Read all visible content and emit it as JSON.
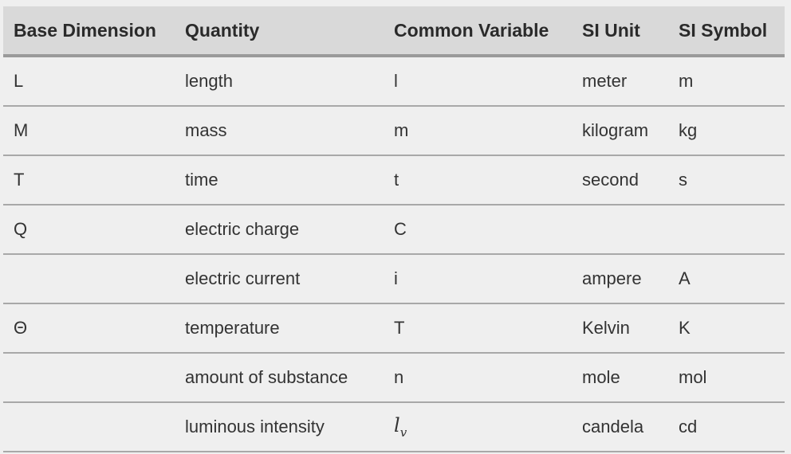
{
  "table": {
    "headers": [
      "Base Dimension",
      "Quantity",
      "Common Variable",
      "SI Unit",
      "SI Symbol"
    ],
    "rows": [
      {
        "dimension": "L",
        "quantity": "length",
        "variable": "l",
        "unit": "meter",
        "symbol": "m"
      },
      {
        "dimension": "M",
        "quantity": "mass",
        "variable": "m",
        "unit": "kilogram",
        "symbol": "kg"
      },
      {
        "dimension": "T",
        "quantity": "time",
        "variable": "t",
        "unit": "second",
        "symbol": "s"
      },
      {
        "dimension": "Q",
        "quantity": "electric charge",
        "variable": "C",
        "unit": "",
        "symbol": ""
      },
      {
        "dimension": "",
        "quantity": "electric current",
        "variable": "i",
        "unit": "ampere",
        "symbol": "A"
      },
      {
        "dimension": "Θ",
        "quantity": "temperature",
        "variable": "T",
        "unit": "Kelvin",
        "symbol": "K"
      },
      {
        "dimension": "",
        "quantity": "amount of substance",
        "variable": "n",
        "unit": "mole",
        "symbol": "mol"
      },
      {
        "dimension": "",
        "quantity": "luminous intensity",
        "variable": "l",
        "variable_subscript": "v",
        "unit": "candela",
        "symbol": "cd"
      }
    ]
  }
}
